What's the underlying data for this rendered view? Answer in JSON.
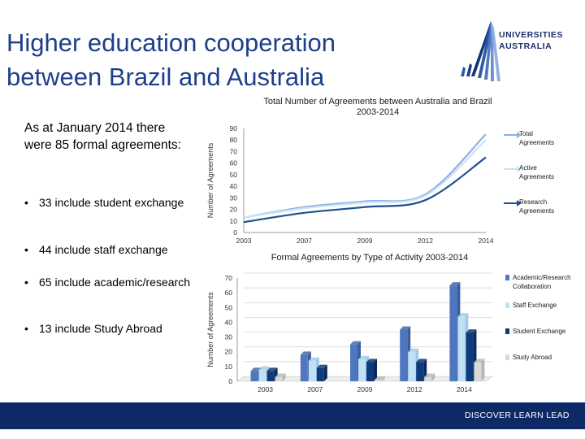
{
  "slide": {
    "title_lines": [
      "Higher education cooperation",
      "between Brazil and Australia"
    ],
    "intro": "As at January 2014 there were 85 formal agreements:",
    "bullets": [
      "33 include student exchange",
      "44 include staff exchange",
      "65 include academic/research",
      "13 include Study Abroad"
    ],
    "bullet_symbol": "•"
  },
  "logo": {
    "line1": "UNIVERSITIES",
    "line2": "AUSTRALIA",
    "icon": "universities-australia-logo-icon"
  },
  "footer": {
    "tagline": "DISCOVER   LEARN   LEAD"
  },
  "colors": {
    "title": "#1d3f8a",
    "total": "#8fb0e0",
    "active": "#c6e3f7",
    "research": "#1f4f8f",
    "academic": "#4f77c0",
    "staff": "#bfe0f5",
    "student": "#0f3b7d",
    "study_abroad": "#d9d9d9",
    "footer": "#0d2a66"
  },
  "chart_data": [
    {
      "type": "line",
      "title_lines": [
        "Total Number of Agreements between Australia and Brazil",
        "2003-2014"
      ],
      "ylabel": "Number of Agreements",
      "xlabel": "",
      "x": [
        "2003",
        "2007",
        "2009",
        "2012",
        "2014"
      ],
      "x_ticks": [
        "2003",
        "2007",
        "2009",
        "2012",
        "2014"
      ],
      "ylim": [
        0,
        90
      ],
      "y_ticks": [
        0,
        10,
        20,
        30,
        40,
        50,
        60,
        70,
        80,
        90
      ],
      "grid": false,
      "legend": "right",
      "series": [
        {
          "name": "Total Agreements",
          "values": [
            13,
            22,
            27,
            33,
            85
          ]
        },
        {
          "name": "Active Agreements",
          "values": [
            13,
            21,
            26,
            32,
            80
          ]
        },
        {
          "name": "Research Agreements",
          "values": [
            9,
            17,
            22,
            28,
            65
          ]
        }
      ]
    },
    {
      "type": "bar",
      "title": "Formal Agreements by Type of Activity 2003-2014",
      "ylabel": "Number of Agreements",
      "xlabel": "",
      "categories": [
        "2003",
        "2007",
        "2009",
        "2012",
        "2014"
      ],
      "ylim": [
        0,
        70
      ],
      "y_ticks": [
        0,
        10,
        20,
        30,
        40,
        50,
        60,
        70
      ],
      "grid": true,
      "legend": "right",
      "series": [
        {
          "name": "Academic/Research Collaboration",
          "values": [
            7,
            18,
            25,
            35,
            65
          ]
        },
        {
          "name": "Staff Exchange",
          "values": [
            8,
            14,
            15,
            20,
            44
          ]
        },
        {
          "name": "Student Exchange",
          "values": [
            7,
            9,
            13,
            13,
            33
          ]
        },
        {
          "name": "Study Abroad",
          "values": [
            3,
            0,
            1,
            3,
            13
          ]
        }
      ]
    }
  ]
}
